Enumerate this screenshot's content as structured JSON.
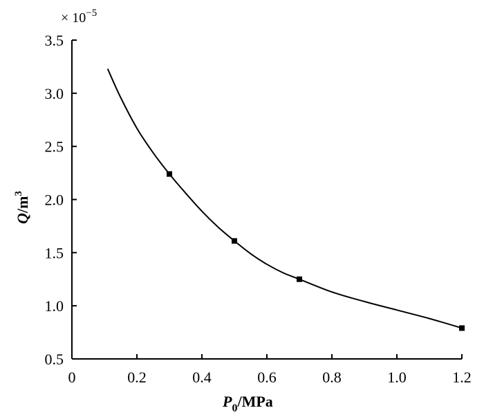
{
  "chart_data": {
    "type": "line",
    "xlabel": {
      "main": "P",
      "sub": "0",
      "unit": "/MPa"
    },
    "ylabel": {
      "main": "Q",
      "unit": "/m",
      "sup": "3"
    },
    "y_multiplier": {
      "prefix": "× 10",
      "exponent": "−5"
    },
    "xlim": [
      0,
      1.2
    ],
    "ylim": [
      0.5,
      3.5
    ],
    "xticks": [
      "0",
      "0.2",
      "0.4",
      "0.6",
      "0.8",
      "1.0",
      "1.2"
    ],
    "yticks": [
      "0.5",
      "1.0",
      "1.5",
      "2.0",
      "2.5",
      "3.0",
      "3.5"
    ],
    "grid": false,
    "markers": {
      "x": [
        0.3,
        0.5,
        0.7,
        1.2
      ],
      "y": [
        2.24,
        1.61,
        1.25,
        0.79
      ]
    },
    "curve": {
      "x": [
        0.11,
        0.15,
        0.2,
        0.25,
        0.3,
        0.35,
        0.4,
        0.45,
        0.5,
        0.55,
        0.6,
        0.65,
        0.7,
        0.8,
        0.9,
        1.0,
        1.1,
        1.2
      ],
      "y": [
        3.23,
        2.96,
        2.67,
        2.44,
        2.24,
        2.06,
        1.89,
        1.74,
        1.61,
        1.49,
        1.39,
        1.31,
        1.25,
        1.13,
        1.04,
        0.96,
        0.88,
        0.79
      ]
    }
  }
}
